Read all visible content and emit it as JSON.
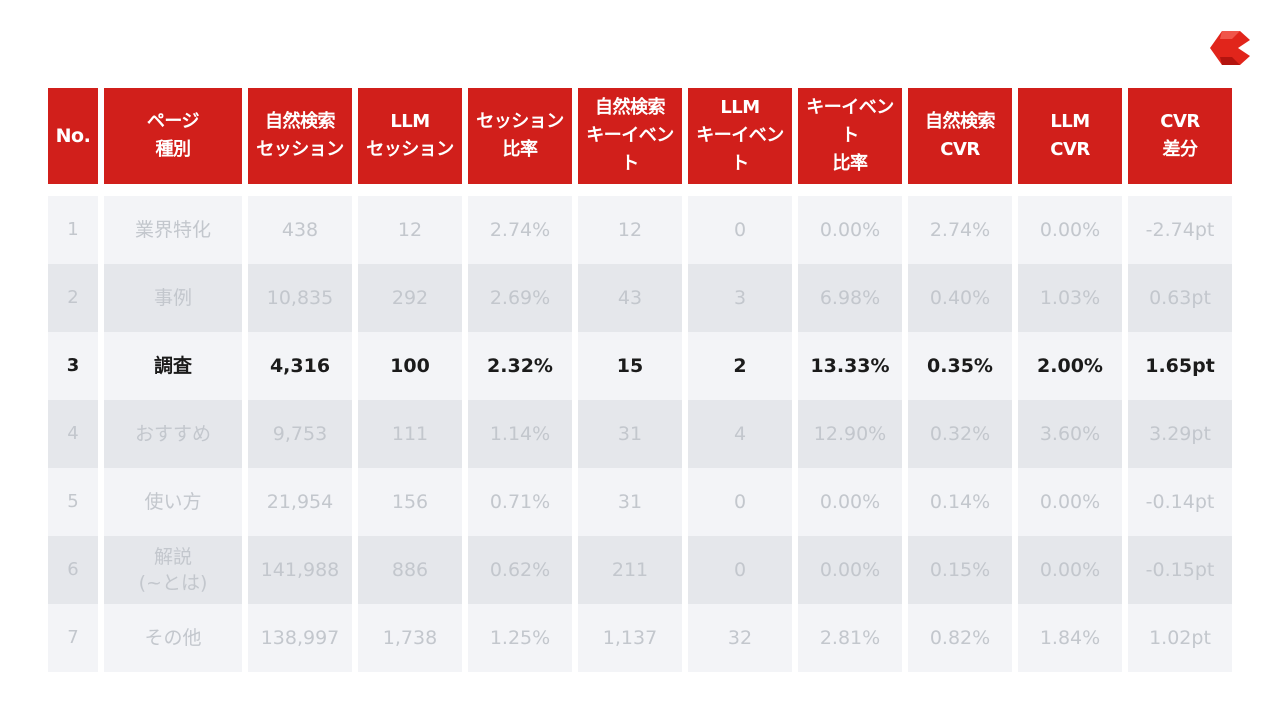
{
  "colors": {
    "header_bg": "#d11f1b",
    "row_light": "#f3f4f7",
    "row_dark": "#e5e7eb",
    "dim_text": "#c3c7cd",
    "highlight_text": "#1b1b1b",
    "logo": "#e1251b"
  },
  "logo": {
    "icon": "brand-logo-icon"
  },
  "table": {
    "headers": [
      "No.",
      "ページ\n種別",
      "自然検索\nセッション",
      "LLM\nセッション",
      "セッション\n比率",
      "自然検索\nキーイベント",
      "LLM\nキーイベント",
      "キーイベント\n比率",
      "自然検索\nCVR",
      "LLM\nCVR",
      "CVR\n差分"
    ],
    "highlighted_row": 2,
    "rows": [
      [
        "1",
        "業界特化",
        "438",
        "12",
        "2.74%",
        "12",
        "0",
        "0.00%",
        "2.74%",
        "0.00%",
        "-2.74pt"
      ],
      [
        "2",
        "事例",
        "10,835",
        "292",
        "2.69%",
        "43",
        "3",
        "6.98%",
        "0.40%",
        "1.03%",
        "0.63pt"
      ],
      [
        "3",
        "調査",
        "4,316",
        "100",
        "2.32%",
        "15",
        "2",
        "13.33%",
        "0.35%",
        "2.00%",
        "1.65pt"
      ],
      [
        "4",
        "おすすめ",
        "9,753",
        "111",
        "1.14%",
        "31",
        "4",
        "12.90%",
        "0.32%",
        "3.60%",
        "3.29pt"
      ],
      [
        "5",
        "使い方",
        "21,954",
        "156",
        "0.71%",
        "31",
        "0",
        "0.00%",
        "0.14%",
        "0.00%",
        "-0.14pt"
      ],
      [
        "6",
        "解説\n(~とは)",
        "141,988",
        "886",
        "0.62%",
        "211",
        "0",
        "0.00%",
        "0.15%",
        "0.00%",
        "-0.15pt"
      ],
      [
        "7",
        "その他",
        "138,997",
        "1,738",
        "1.25%",
        "1,137",
        "32",
        "2.81%",
        "0.82%",
        "1.84%",
        "1.02pt"
      ]
    ]
  }
}
